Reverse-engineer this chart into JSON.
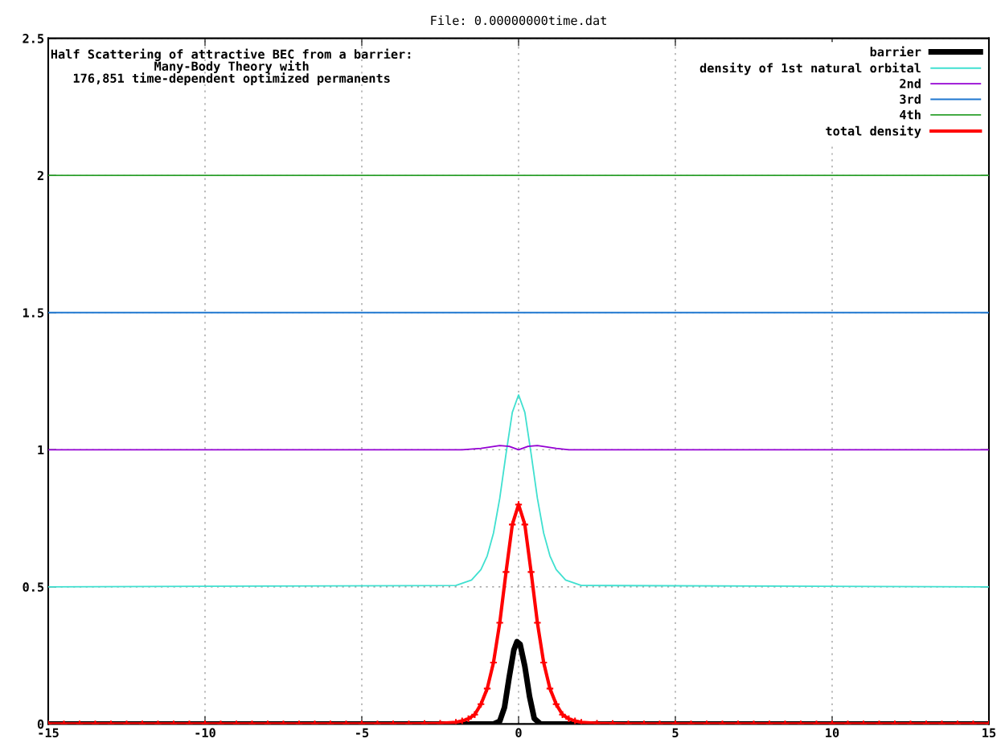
{
  "chart_data": {
    "type": "line",
    "title": "File: 0.00000000time.dat",
    "annotations": [
      "Half Scattering of attractive BEC from a barrier:\nMany-Body Theory with\n176,851 time-dependent optimized permanents"
    ],
    "xlim": [
      -15,
      15
    ],
    "xticks": [
      -15,
      -10,
      -5,
      0,
      5,
      10,
      15
    ],
    "ylim": [
      0,
      2.5
    ],
    "yticks": [
      0,
      0.5,
      1,
      1.5,
      2,
      2.5
    ],
    "grid": true,
    "legend": "top right",
    "line_style": "solid",
    "series": [
      {
        "name": "barrier",
        "color": "#000000",
        "x": [
          -15,
          -0.8,
          -0.6,
          -0.45,
          -0.3,
          -0.15,
          -0.05,
          0.05,
          0.2,
          0.35,
          0.5,
          0.7,
          15
        ],
        "values": [
          0,
          0,
          0.01,
          0.06,
          0.17,
          0.27,
          0.3,
          0.29,
          0.21,
          0.1,
          0.02,
          0,
          0
        ]
      },
      {
        "name": "density of 1st natural orbital",
        "color": "#40e0d0",
        "x": [
          -15,
          -2,
          -1.5,
          -1.2,
          -1,
          -0.8,
          -0.6,
          -0.4,
          -0.2,
          0,
          0.2,
          0.4,
          0.6,
          0.8,
          1,
          1.2,
          1.5,
          2,
          15
        ],
        "values": [
          0.5,
          0.505,
          0.525,
          0.563,
          0.613,
          0.696,
          0.823,
          0.985,
          1.136,
          1.2,
          1.136,
          0.985,
          0.823,
          0.696,
          0.613,
          0.563,
          0.525,
          0.505,
          0.5
        ]
      },
      {
        "name": "2nd",
        "color": "#9400d3",
        "x": [
          -15,
          -1.8,
          -1.2,
          -0.6,
          -0.3,
          0,
          0.3,
          0.6,
          1.2,
          1.6,
          15
        ],
        "values": [
          1,
          1,
          1.005,
          1.015,
          1.012,
          1,
          1.012,
          1.015,
          1.005,
          1,
          1
        ]
      },
      {
        "name": "3rd",
        "color": "#1f77d0",
        "x": [
          -15,
          15
        ],
        "values": [
          1.5,
          1.5
        ]
      },
      {
        "name": "4th",
        "color": "#2ca02c",
        "x": [
          -15,
          15
        ],
        "values": [
          2,
          2
        ]
      },
      {
        "name": "total density",
        "color": "#ff0000",
        "marker": "cross",
        "x": [
          -15,
          -14.5,
          -14,
          -13.5,
          -13,
          -12.5,
          -12,
          -11.5,
          -11,
          -10.5,
          -10,
          -9.5,
          -9,
          -8.5,
          -8,
          -7.5,
          -7,
          -6.5,
          -6,
          -5.5,
          -5,
          -4.5,
          -4,
          -3.5,
          -3,
          -2.5,
          -2,
          -1.8,
          -1.6,
          -1.4,
          -1.2,
          -1,
          -0.8,
          -0.6,
          -0.4,
          -0.2,
          0,
          0.2,
          0.4,
          0.6,
          0.8,
          1,
          1.2,
          1.4,
          1.6,
          1.8,
          2,
          2.5,
          3,
          3.5,
          4,
          4.5,
          5,
          5.5,
          6,
          6.5,
          7,
          7.5,
          8,
          8.5,
          9,
          9.5,
          10,
          10.5,
          11,
          11.5,
          12,
          12.5,
          13,
          13.5,
          14,
          14.5,
          15
        ],
        "values": [
          0,
          0,
          0,
          0,
          0,
          0,
          0,
          0,
          0,
          0,
          0,
          0,
          0,
          0,
          0,
          0,
          0,
          0,
          0,
          0,
          0,
          0,
          0,
          0,
          0.001,
          0.002,
          0.006,
          0.011,
          0.019,
          0.034,
          0.072,
          0.129,
          0.224,
          0.369,
          0.554,
          0.727,
          0.8,
          0.727,
          0.554,
          0.369,
          0.224,
          0.129,
          0.072,
          0.034,
          0.019,
          0.011,
          0.006,
          0.002,
          0.001,
          0,
          0,
          0,
          0,
          0,
          0,
          0,
          0,
          0,
          0,
          0,
          0,
          0,
          0,
          0,
          0,
          0,
          0,
          0,
          0,
          0,
          0,
          0,
          0
        ]
      }
    ]
  }
}
